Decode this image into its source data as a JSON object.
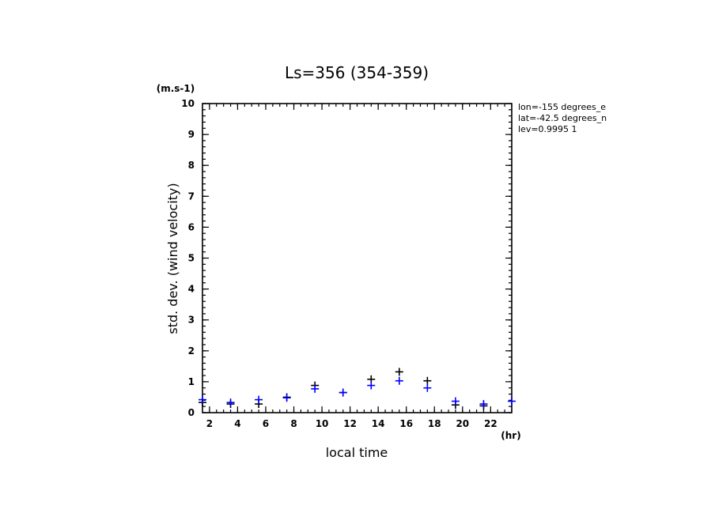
{
  "chart_data": {
    "type": "scatter",
    "title": "Ls=356 (354-359)",
    "xlabel": "local time",
    "ylabel": "std. dev. (wind velocity)",
    "x_unit": "(hr)",
    "y_unit": "(m.s-1)",
    "xlim": [
      1.5,
      23.5
    ],
    "ylim": [
      0,
      10
    ],
    "x_ticks": [
      2,
      4,
      6,
      8,
      10,
      12,
      14,
      16,
      18,
      20,
      22
    ],
    "y_ticks": [
      0,
      1,
      2,
      3,
      4,
      5,
      6,
      7,
      8,
      9,
      10
    ],
    "grid": false,
    "annotations": [
      "lon=-155 degrees_e",
      "lat=-42.5 degrees_n",
      "lev=0.9995 1"
    ],
    "series": [
      {
        "color": "#000000",
        "marker": "+",
        "x": [
          1.5,
          3.5,
          5.5,
          7.5,
          9.5,
          11.5,
          13.5,
          15.5,
          17.5,
          19.5,
          21.5
        ],
        "y": [
          0.33,
          0.28,
          0.28,
          0.5,
          0.88,
          0.65,
          1.08,
          1.32,
          1.03,
          0.25,
          0.22
        ]
      },
      {
        "color": "#0000ff",
        "marker": "+",
        "x": [
          1.5,
          3.5,
          5.5,
          7.5,
          9.5,
          11.5,
          13.5,
          15.5,
          17.5,
          19.5,
          21.5,
          23.5
        ],
        "y": [
          0.42,
          0.33,
          0.42,
          0.48,
          0.77,
          0.65,
          0.88,
          1.03,
          0.8,
          0.37,
          0.28,
          0.37
        ]
      }
    ]
  }
}
